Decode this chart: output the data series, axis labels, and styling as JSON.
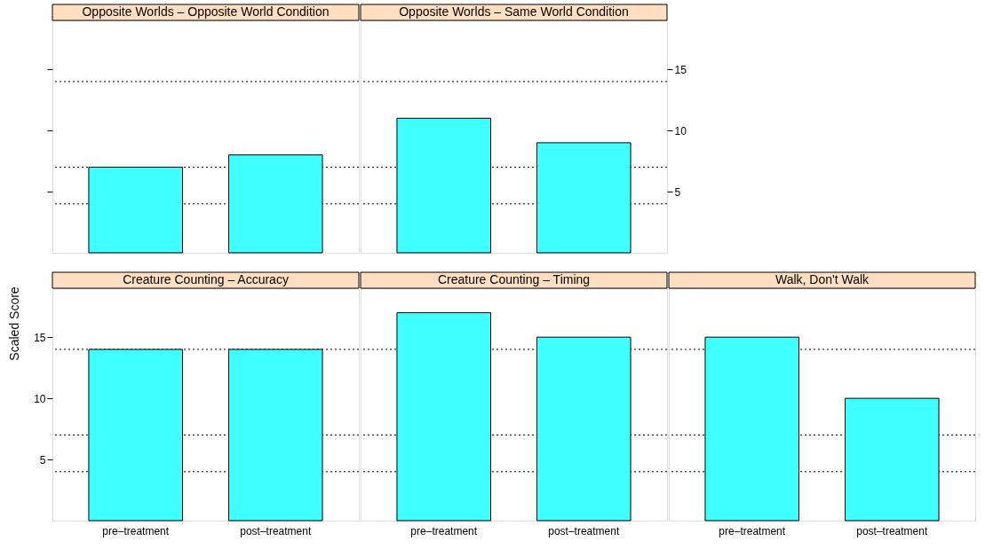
{
  "chart_data": [
    {
      "type": "bar",
      "title": "Opposite Worlds – Opposite World Condition",
      "categories": [
        null,
        null
      ],
      "values": [
        7,
        8
      ],
      "color": "#40ffff",
      "ylim": [
        0,
        19
      ],
      "yticks": [
        5,
        10,
        15
      ],
      "tick_labels": false,
      "grid": false,
      "ref_lines": [
        {
          "axis": "y",
          "value": 4,
          "line_style": "dotted",
          "color": "#000000"
        },
        {
          "axis": "y",
          "value": 7,
          "line_style": "dotted",
          "color": "#000000"
        },
        {
          "axis": "y",
          "value": 14,
          "line_style": "dotted",
          "color": "#000000"
        }
      ]
    },
    {
      "type": "bar",
      "title": "Opposite Worlds – Same World Condition",
      "categories": [
        null,
        null
      ],
      "values": [
        11,
        9
      ],
      "color": "#40ffff",
      "ylim": [
        0,
        19
      ],
      "yticks": [
        5,
        10,
        15
      ],
      "tick_labels": "y",
      "grid": false,
      "ref_lines": [
        {
          "axis": "y",
          "value": 4,
          "line_style": "dotted",
          "color": "#000000"
        },
        {
          "axis": "y",
          "value": 7,
          "line_style": "dotted",
          "color": "#000000"
        },
        {
          "axis": "y",
          "value": 14,
          "line_style": "dotted",
          "color": "#000000"
        }
      ]
    },
    {
      "type": "bar",
      "title": "Creature Counting – Accuracy",
      "ylabel": "Scaled Score",
      "categories": [
        "pre–treatment",
        "post–treatment"
      ],
      "values": [
        14,
        14
      ],
      "color": "#40ffff",
      "ylim": [
        0,
        19
      ],
      "yticks": [
        5,
        10,
        15
      ],
      "grid": false,
      "ref_lines": [
        {
          "axis": "y",
          "value": 4,
          "line_style": "dotted",
          "color": "#000000"
        },
        {
          "axis": "y",
          "value": 7,
          "line_style": "dotted",
          "color": "#000000"
        },
        {
          "axis": "y",
          "value": 14,
          "line_style": "dotted",
          "color": "#000000"
        }
      ]
    },
    {
      "type": "bar",
      "title": "Creature Counting – Timing",
      "categories": [
        "pre–treatment",
        "post–treatment"
      ],
      "values": [
        17,
        15
      ],
      "color": "#40ffff",
      "ylim": [
        0,
        19
      ],
      "yticks": [
        5,
        10,
        15
      ],
      "tick_labels": "x",
      "grid": false,
      "ref_lines": [
        {
          "axis": "y",
          "value": 4,
          "line_style": "dotted",
          "color": "#000000"
        },
        {
          "axis": "y",
          "value": 7,
          "line_style": "dotted",
          "color": "#000000"
        },
        {
          "axis": "y",
          "value": 14,
          "line_style": "dotted",
          "color": "#000000"
        }
      ]
    },
    {
      "type": "bar",
      "title": "Walk, Don't Walk",
      "categories": [
        "pre–treatment",
        "post–treatment"
      ],
      "values": [
        15,
        10
      ],
      "color": "#40ffff",
      "ylim": [
        0,
        19
      ],
      "yticks": [
        5,
        10,
        15
      ],
      "tick_labels": "x",
      "grid": false,
      "ref_lines": [
        {
          "axis": "y",
          "value": 4,
          "line_style": "dotted",
          "color": "#000000"
        },
        {
          "axis": "y",
          "value": 7,
          "line_style": "dotted",
          "color": "#000000"
        },
        {
          "axis": "y",
          "value": 14,
          "line_style": "dotted",
          "color": "#000000"
        }
      ]
    }
  ]
}
